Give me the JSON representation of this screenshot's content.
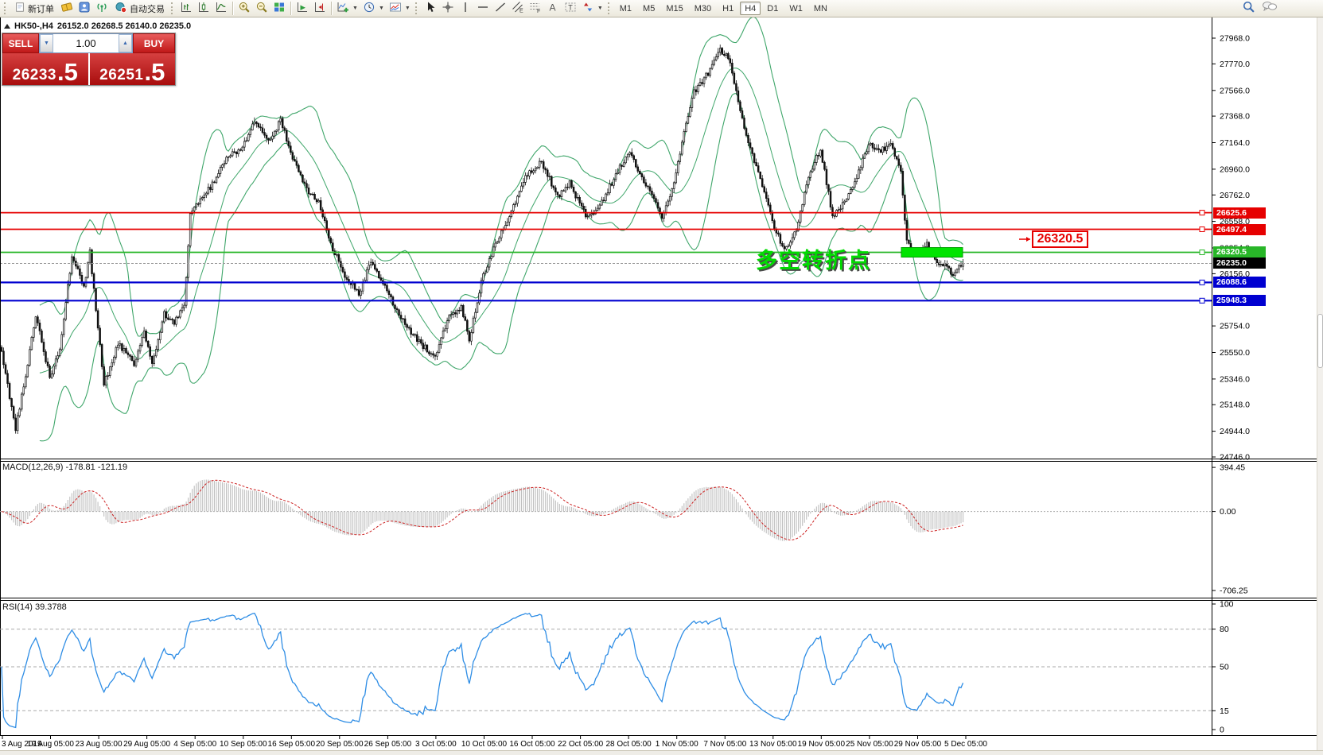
{
  "toolbar": {
    "new_order": "新订单",
    "auto_trading": "自动交易",
    "timeframes": [
      "M1",
      "M5",
      "M15",
      "M30",
      "H1",
      "H4",
      "D1",
      "W1",
      "MN"
    ],
    "active_timeframe": "H4"
  },
  "order_panel": {
    "symbol_header": "HK50-,H4",
    "ohlc_header": "26152.0 26268.5 26140.0 26235.0",
    "sell_label": "SELL",
    "buy_label": "BUY",
    "volume": "1.00",
    "sell_price_main": "26233",
    "sell_price_frac": ".5",
    "buy_price_main": "26251",
    "buy_price_frac": ".5"
  },
  "annotations": {
    "turning_point_text": "多空转折点",
    "price_tag": "26320.5"
  },
  "macd_panel": {
    "label": "MACD(12,26,9) -178.81 -121.19"
  },
  "rsi_panel": {
    "label": "RSI(14) 39.3788"
  },
  "chart_data": {
    "type": "candlestick",
    "symbol": "HK50-",
    "timeframe": "H4",
    "title_ohlc": {
      "open": 26152.0,
      "high": 26268.5,
      "low": 26140.0,
      "close": 26235.0
    },
    "y_axis": {
      "min": 24746.0,
      "max": 27968.0,
      "ticks": [
        27968.0,
        27770.0,
        27566.0,
        27368.0,
        27164.0,
        26960.0,
        26762.0,
        26558.0,
        26354.0,
        26156.0,
        25754.0,
        25550.0,
        25346.0,
        25148.0,
        24944.0,
        24746.0
      ]
    },
    "x_axis": {
      "tick_labels": [
        "3 Aug 2019",
        "19 Aug 05:00",
        "23 Aug 05:00",
        "29 Aug 05:00",
        "4 Sep 05:00",
        "10 Sep 05:00",
        "16 Sep 05:00",
        "20 Sep 05:00",
        "26 Sep 05:00",
        "3 Oct 05:00",
        "10 Oct 05:00",
        "16 Oct 05:00",
        "22 Oct 05:00",
        "28 Oct 05:00",
        "1 Nov 05:00",
        "7 Nov 05:00",
        "13 Nov 05:00",
        "19 Nov 05:00",
        "25 Nov 05:00",
        "29 Nov 05:00",
        "5 Dec 05:00"
      ]
    },
    "num_candles": 480,
    "price_path_anchors": [
      [
        0,
        25560
      ],
      [
        4,
        25200
      ],
      [
        7,
        24960
      ],
      [
        12,
        25380
      ],
      [
        17,
        25840
      ],
      [
        24,
        25360
      ],
      [
        29,
        25580
      ],
      [
        35,
        26300
      ],
      [
        41,
        26060
      ],
      [
        44,
        26320
      ],
      [
        51,
        25300
      ],
      [
        58,
        25620
      ],
      [
        66,
        25460
      ],
      [
        71,
        25700
      ],
      [
        75,
        25450
      ],
      [
        81,
        25850
      ],
      [
        86,
        25780
      ],
      [
        91,
        25900
      ],
      [
        94,
        26620
      ],
      [
        101,
        26750
      ],
      [
        107,
        26900
      ],
      [
        113,
        27060
      ],
      [
        119,
        27100
      ],
      [
        126,
        27330
      ],
      [
        134,
        27180
      ],
      [
        139,
        27340
      ],
      [
        145,
        27050
      ],
      [
        152,
        26800
      ],
      [
        158,
        26700
      ],
      [
        165,
        26350
      ],
      [
        171,
        26150
      ],
      [
        178,
        26000
      ],
      [
        184,
        26250
      ],
      [
        191,
        26050
      ],
      [
        198,
        25850
      ],
      [
        204,
        25700
      ],
      [
        210,
        25600
      ],
      [
        216,
        25520
      ],
      [
        222,
        25800
      ],
      [
        229,
        25900
      ],
      [
        233,
        25650
      ],
      [
        239,
        26100
      ],
      [
        245,
        26350
      ],
      [
        253,
        26600
      ],
      [
        261,
        26900
      ],
      [
        269,
        27020
      ],
      [
        277,
        26750
      ],
      [
        283,
        26850
      ],
      [
        292,
        26580
      ],
      [
        299,
        26700
      ],
      [
        307,
        26950
      ],
      [
        313,
        27080
      ],
      [
        317,
        26950
      ],
      [
        323,
        26800
      ],
      [
        329,
        26580
      ],
      [
        335,
        26850
      ],
      [
        340,
        27250
      ],
      [
        345,
        27550
      ],
      [
        352,
        27700
      ],
      [
        358,
        27880
      ],
      [
        362,
        27820
      ],
      [
        367,
        27500
      ],
      [
        372,
        27150
      ],
      [
        378,
        26900
      ],
      [
        384,
        26550
      ],
      [
        390,
        26330
      ],
      [
        396,
        26500
      ],
      [
        402,
        26900
      ],
      [
        408,
        27120
      ],
      [
        414,
        26600
      ],
      [
        420,
        26700
      ],
      [
        426,
        26900
      ],
      [
        432,
        27150
      ],
      [
        438,
        27100
      ],
      [
        443,
        27150
      ],
      [
        448,
        26950
      ],
      [
        451,
        26400
      ],
      [
        456,
        26300
      ],
      [
        461,
        26380
      ],
      [
        466,
        26250
      ],
      [
        470,
        26220
      ],
      [
        474,
        26150
      ],
      [
        479,
        26235
      ]
    ],
    "horizontal_levels": [
      {
        "price": 26625.6,
        "label": "26625.6",
        "color": "#e60000",
        "type": "resistance"
      },
      {
        "price": 26497.4,
        "label": "26497.4",
        "color": "#e60000",
        "type": "resistance"
      },
      {
        "price": 26320.5,
        "label": "26320.5",
        "color": "#28b628",
        "type": "pivot"
      },
      {
        "price": 26235.0,
        "label": "26235.0",
        "color": "#000000",
        "type": "current-price"
      },
      {
        "price": 26088.6,
        "label": "26088.6",
        "color": "#0000d0",
        "type": "support"
      },
      {
        "price": 25948.3,
        "label": "25948.3",
        "color": "#0000d0",
        "type": "support"
      }
    ],
    "highlight_rectangle": {
      "price": 26320.5,
      "color": "#00e400"
    },
    "indicators": {
      "bollinger": {
        "period": 20,
        "deviation": 2,
        "color": "#3fa66a"
      },
      "macd": {
        "fast": 12,
        "slow": 26,
        "signal": 9,
        "macd_value": -178.81,
        "signal_value": -121.19,
        "tick_labels": [
          "394.45",
          "0.00",
          "-706.25"
        ],
        "histogram_color": "#bfbfbf",
        "signal_color": "#cc2222"
      },
      "rsi": {
        "period": 14,
        "value": 39.3788,
        "tick_labels": [
          "100",
          "80",
          "50",
          "15",
          "0"
        ],
        "levels": [
          80,
          50,
          15
        ],
        "color": "#2e8de5"
      }
    }
  }
}
